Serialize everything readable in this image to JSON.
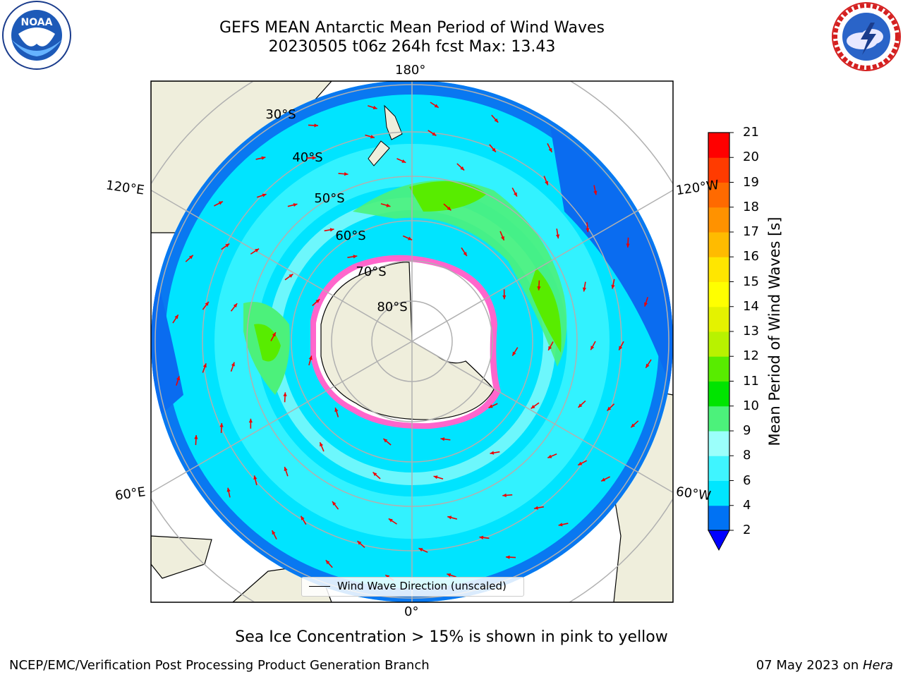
{
  "header": {
    "title_line1": "GEFS MEAN Antarctic Mean Period of Wind Waves",
    "title_line2": "20230505 t06z 264h fcst   Max: 13.43"
  },
  "logos": {
    "left": "noaa-logo",
    "left_text": "NOAA",
    "left_ring_text": "NATIONAL OCEANIC AND ATMOSPHERIC ADMINISTRATION · U.S. DEPARTMENT OF COMMERCE",
    "right": "nws-logo",
    "right_ring_text": "NATIONAL WEATHER SERVICE"
  },
  "map": {
    "longitude_labels": {
      "top": "180°",
      "bottom": "0°",
      "upper_left": "120°E",
      "upper_right": "120°W",
      "lower_left": "60°E",
      "lower_right": "60°W"
    },
    "latitude_labels": [
      "30°S",
      "40°S",
      "50°S",
      "60°S",
      "70°S",
      "80°S"
    ],
    "legend": {
      "label": "Wind Wave Direction (unscaled)"
    }
  },
  "colorbar": {
    "title": "Mean Period of Wind Waves [s]",
    "ticks": [
      "2",
      "4",
      "6",
      "8",
      "9",
      "10",
      "11",
      "12",
      "13",
      "14",
      "15",
      "16",
      "17",
      "18",
      "19",
      "20",
      "21"
    ],
    "colors": [
      "#0072f4",
      "#00e6ff",
      "#3ff5ff",
      "#9bfffb",
      "#4cf17b",
      "#00e400",
      "#58ec00",
      "#b8f200",
      "#e4f200",
      "#ffff00",
      "#ffe600",
      "#ffbb00",
      "#ff9200",
      "#ff6a00",
      "#ff3b00",
      "#ff0000"
    ],
    "extend_color": "#0000ff"
  },
  "notes": {
    "ice": "Sea Ice Concentration > 15% is shown in pink to yellow",
    "credit": "NCEP/EMC/Verification Post Processing Product Generation Branch",
    "date": "07 May 2023 on ",
    "machine": "Hera"
  }
}
